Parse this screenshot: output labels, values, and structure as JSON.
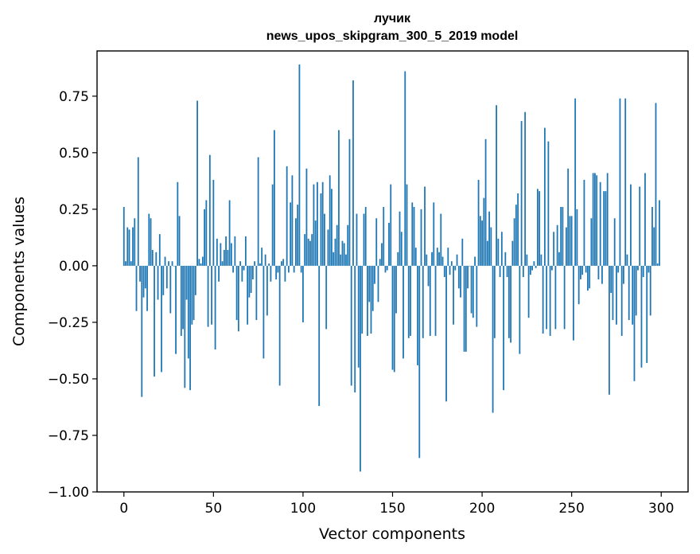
{
  "chart_data": {
    "type": "bar",
    "title": "лучик",
    "subtitle": "news_upos_skipgram_300_5_2019 model",
    "xlabel": "Vector components",
    "ylabel": "Components values",
    "xlim": [
      -15,
      315
    ],
    "ylim": [
      -1.0,
      0.95
    ],
    "xticks": [
      0,
      50,
      100,
      150,
      200,
      250,
      300
    ],
    "xtick_labels": [
      "0",
      "50",
      "100",
      "150",
      "200",
      "250",
      "300"
    ],
    "yticks": [
      -1.0,
      -0.75,
      -0.5,
      -0.25,
      0.0,
      0.25,
      0.5,
      0.75
    ],
    "ytick_labels": [
      "−1.00",
      "−0.75",
      "−0.50",
      "−0.25",
      "0.00",
      "0.25",
      "0.50",
      "0.75"
    ],
    "color": "#1f77b4",
    "grid": false,
    "values": [
      0.26,
      0.02,
      0.17,
      0.16,
      0.02,
      0.17,
      0.21,
      -0.2,
      0.48,
      -0.07,
      -0.58,
      -0.14,
      -0.1,
      -0.2,
      0.23,
      0.21,
      0.07,
      -0.49,
      0.06,
      -0.15,
      0.14,
      -0.47,
      -0.13,
      0.04,
      -0.1,
      0.02,
      -0.21,
      0.02,
      0.0,
      -0.39,
      0.37,
      0.22,
      -0.31,
      -0.28,
      -0.54,
      -0.15,
      -0.41,
      -0.55,
      -0.26,
      -0.24,
      -0.13,
      0.73,
      0.03,
      0.01,
      0.04,
      0.25,
      0.29,
      -0.27,
      0.49,
      -0.26,
      0.38,
      -0.37,
      0.12,
      -0.07,
      0.1,
      0.02,
      0.07,
      0.13,
      0.07,
      0.29,
      0.1,
      -0.03,
      0.13,
      -0.24,
      -0.29,
      0.02,
      -0.07,
      -0.02,
      0.13,
      -0.26,
      -0.14,
      -0.12,
      -0.06,
      0.02,
      -0.24,
      0.48,
      0.01,
      0.08,
      -0.41,
      0.05,
      -0.22,
      0.01,
      -0.07,
      0.36,
      0.6,
      -0.06,
      -0.03,
      -0.53,
      0.02,
      0.03,
      -0.07,
      0.44,
      -0.03,
      0.28,
      0.4,
      -0.03,
      0.21,
      0.27,
      0.89,
      -0.03,
      -0.25,
      0.14,
      0.43,
      0.12,
      0.11,
      0.14,
      0.36,
      0.2,
      0.37,
      -0.62,
      0.32,
      0.37,
      0.23,
      -0.28,
      0.16,
      0.4,
      0.34,
      0.06,
      0.12,
      0.18,
      0.6,
      0.05,
      0.11,
      0.1,
      0.05,
      0.18,
      0.56,
      -0.53,
      0.82,
      -0.56,
      0.23,
      -0.45,
      -0.91,
      -0.3,
      0.23,
      0.26,
      -0.31,
      -0.16,
      -0.3,
      -0.2,
      -0.08,
      0.21,
      -0.16,
      0.03,
      0.1,
      0.26,
      -0.03,
      -0.02,
      0.19,
      0.36,
      -0.46,
      -0.47,
      -0.21,
      0.06,
      0.24,
      0.15,
      -0.41,
      0.86,
      0.36,
      -0.32,
      -0.31,
      0.28,
      0.26,
      0.08,
      -0.44,
      -0.85,
      0.25,
      -0.32,
      0.35,
      0.05,
      -0.09,
      -0.31,
      0.06,
      0.28,
      -0.31,
      0.08,
      0.06,
      0.23,
      0.04,
      -0.05,
      -0.6,
      0.08,
      -0.04,
      0.02,
      -0.26,
      -0.02,
      0.05,
      -0.1,
      -0.14,
      0.12,
      -0.38,
      -0.38,
      -0.1,
      0.0,
      -0.21,
      -0.23,
      0.04,
      -0.27,
      0.38,
      0.22,
      0.2,
      0.3,
      0.56,
      0.11,
      0.24,
      0.17,
      -0.65,
      -0.32,
      0.71,
      0.12,
      -0.05,
      0.15,
      -0.55,
      0.06,
      -0.05,
      -0.32,
      -0.34,
      0.11,
      0.21,
      0.27,
      0.32,
      -0.39,
      0.64,
      -0.05,
      0.68,
      0.05,
      -0.23,
      -0.04,
      -0.02,
      0.02,
      -0.01,
      0.34,
      0.33,
      0.05,
      -0.3,
      0.61,
      -0.28,
      0.55,
      -0.31,
      -0.02,
      0.15,
      -0.28,
      0.18,
      0.06,
      0.26,
      0.26,
      -0.28,
      0.17,
      0.43,
      0.22,
      0.22,
      -0.33,
      0.74,
      0.25,
      -0.17,
      -0.06,
      -0.04,
      0.38,
      -0.03,
      -0.11,
      -0.1,
      0.21,
      0.41,
      0.41,
      0.4,
      -0.06,
      0.37,
      -0.08,
      0.33,
      0.33,
      0.41,
      -0.57,
      -0.12,
      -0.24,
      0.21,
      -0.26,
      -0.03,
      0.74,
      -0.31,
      -0.08,
      0.74,
      0.05,
      -0.24,
      0.36,
      -0.26,
      -0.51,
      -0.22,
      -0.02,
      0.35,
      -0.45,
      -0.05,
      0.41,
      -0.43,
      -0.03,
      -0.22,
      0.26,
      0.17,
      0.72,
      0.01,
      0.29
    ]
  }
}
